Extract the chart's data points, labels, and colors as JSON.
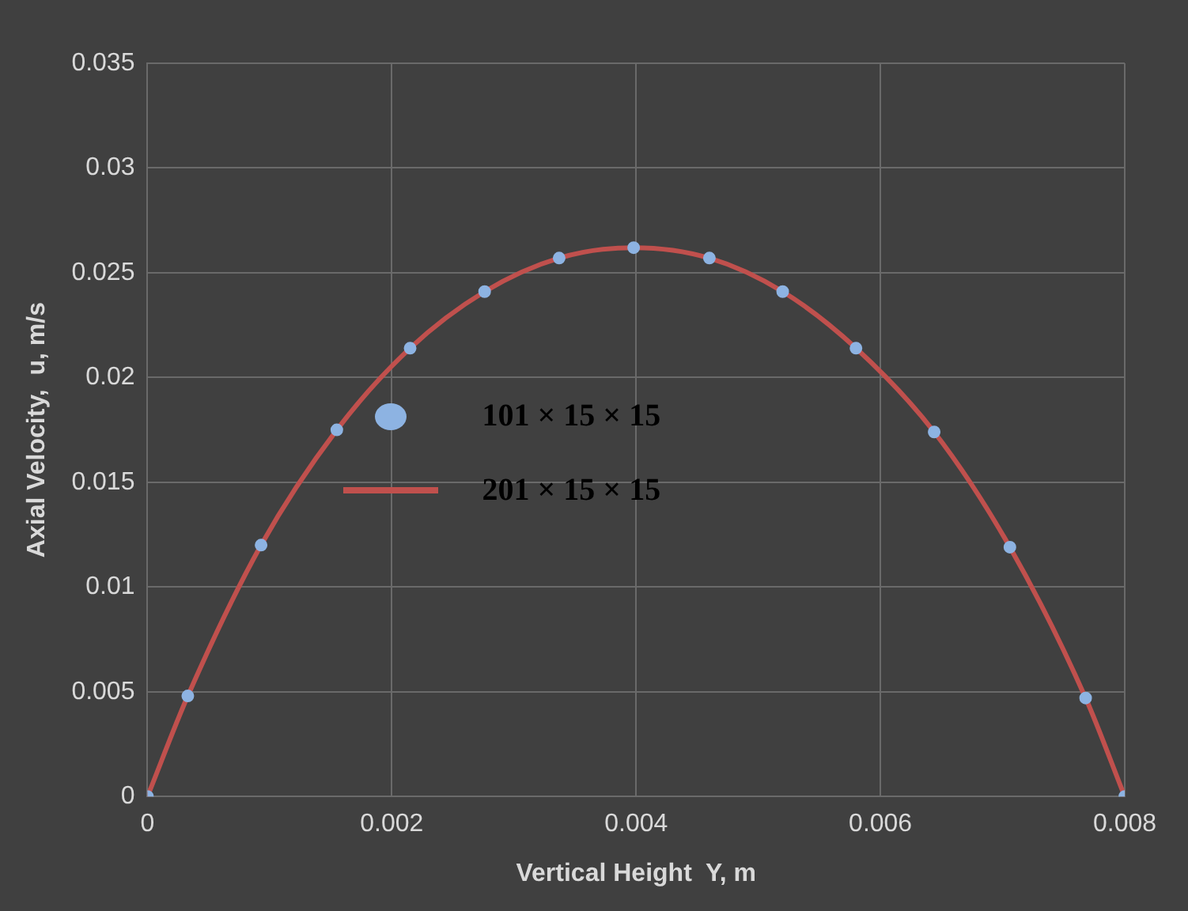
{
  "chart_data": {
    "type": "scatter",
    "xlabel": "Vertical Height  Y, m",
    "ylabel": "Axial Velocity,  u, m/s",
    "xlim": [
      0,
      0.008
    ],
    "xticks": [
      0,
      0.002,
      0.004,
      0.006,
      0.008
    ],
    "ylim": [
      0,
      0.035
    ],
    "yticks": [
      0,
      0.005,
      0.01,
      0.015,
      0.02,
      0.025,
      0.03,
      0.035
    ],
    "grid": true,
    "legend": "center",
    "series": [
      {
        "name": "101 × 15 × 15",
        "type": "scatter",
        "marker": "circle",
        "color": "#8db3e2",
        "x": [
          0,
          0.00033,
          0.00093,
          0.00155,
          0.00215,
          0.00276,
          0.00337,
          0.00398,
          0.0046,
          0.0052,
          0.0058,
          0.00644,
          0.00706,
          0.00768,
          0.008
        ],
        "values": [
          0,
          0.0048,
          0.012,
          0.0175,
          0.0214,
          0.0241,
          0.0257,
          0.0262,
          0.0257,
          0.0241,
          0.0214,
          0.0174,
          0.0119,
          0.0047,
          0
        ]
      },
      {
        "name": "201 × 15 × 15",
        "type": "line",
        "marker": "none",
        "line_style": "solid",
        "color": "#c0504d",
        "x": [
          0,
          0.00033,
          0.00093,
          0.00155,
          0.00215,
          0.00276,
          0.00337,
          0.00398,
          0.0046,
          0.0052,
          0.0058,
          0.00644,
          0.00706,
          0.00768,
          0.008
        ],
        "values": [
          0,
          0.0048,
          0.012,
          0.0175,
          0.0214,
          0.0241,
          0.0257,
          0.0262,
          0.0257,
          0.0241,
          0.0214,
          0.0174,
          0.0119,
          0.0047,
          0
        ]
      }
    ]
  }
}
